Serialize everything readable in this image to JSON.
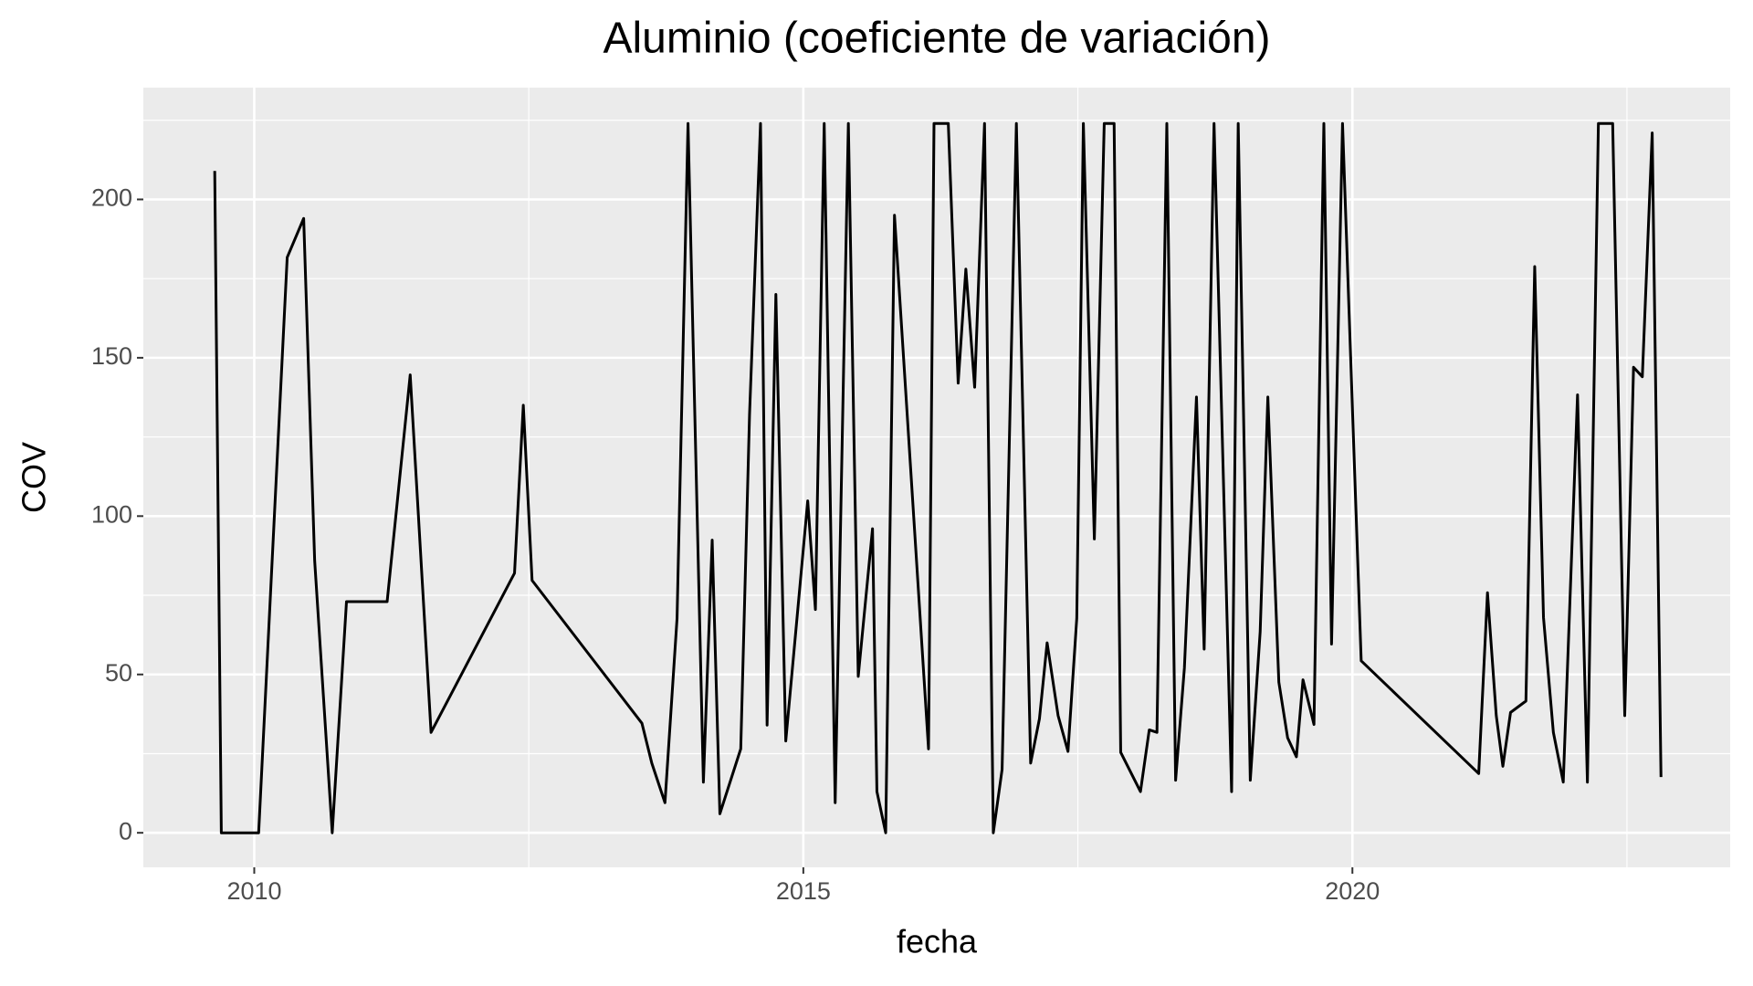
{
  "chart_data": {
    "type": "line",
    "title": "Aluminio (coeficiente de variación)",
    "x_label": "fecha",
    "y_label": "COV",
    "x": [
      2009.64,
      2009.7,
      2010.04,
      2010.3,
      2010.45,
      2010.55,
      2010.71,
      2010.84,
      2011.21,
      2011.42,
      2011.61,
      2012.37,
      2012.45,
      2012.53,
      2013.53,
      2013.62,
      2013.74,
      2013.85,
      2013.95,
      2014.09,
      2014.17,
      2014.24,
      2014.43,
      2014.51,
      2014.61,
      2014.67,
      2014.75,
      2014.84,
      2015.04,
      2015.11,
      2015.19,
      2015.29,
      2015.41,
      2015.5,
      2015.63,
      2015.67,
      2015.75,
      2015.83,
      2016.14,
      2016.19,
      2016.32,
      2016.41,
      2016.48,
      2016.56,
      2016.65,
      2016.73,
      2016.81,
      2016.94,
      2017.07,
      2017.15,
      2017.22,
      2017.32,
      2017.41,
      2017.49,
      2017.55,
      2017.65,
      2017.74,
      2017.83,
      2017.89,
      2018.07,
      2018.15,
      2018.22,
      2018.31,
      2018.39,
      2018.47,
      2018.58,
      2018.65,
      2018.74,
      2018.9,
      2018.96,
      2019.07,
      2019.16,
      2019.23,
      2019.33,
      2019.41,
      2019.49,
      2019.55,
      2019.65,
      2019.74,
      2019.81,
      2019.91,
      2020.08,
      2021.15,
      2021.23,
      2021.31,
      2021.37,
      2021.44,
      2021.58,
      2021.66,
      2021.74,
      2021.83,
      2021.92,
      2022.05,
      2022.14,
      2022.24,
      2022.37,
      2022.48,
      2022.56,
      2022.64,
      2022.73,
      2022.81
    ],
    "series": [
      {
        "name": "COV",
        "color": "#000000",
        "values": [
          209,
          0,
          0,
          181.7,
          194,
          86,
          0,
          73,
          73,
          144.6,
          31.7,
          82,
          135,
          79.7,
          34.6,
          22,
          9.5,
          67.7,
          224,
          16,
          92.4,
          6,
          26.5,
          132,
          224,
          34,
          170,
          29,
          104.8,
          70.5,
          224,
          9.5,
          224,
          49.4,
          96,
          13,
          0,
          195,
          26.5,
          224,
          224,
          142,
          178,
          140.7,
          224,
          0,
          20,
          224,
          22,
          36,
          60,
          37,
          25.7,
          67.7,
          224,
          92.8,
          224,
          224,
          25.4,
          13,
          32.5,
          31.7,
          224,
          16.6,
          52,
          137.6,
          58,
          224,
          13,
          224,
          16.6,
          63.5,
          137.6,
          47.6,
          30,
          24,
          48.3,
          34.2,
          224,
          59.6,
          224,
          54.3,
          18.7,
          75.8,
          37,
          21,
          38,
          41.6,
          178.8,
          68,
          31.7,
          16,
          138.3,
          16,
          224,
          224,
          37,
          147,
          144,
          221,
          17.6
        ]
      }
    ],
    "xlim": [
      2008.99,
      2023.44
    ],
    "xticks": [
      2010,
      2015,
      2020
    ],
    "ylim": [
      -10.9,
      235.3
    ],
    "yticks": [
      0,
      50,
      100,
      150,
      200
    ],
    "grid": true
  }
}
